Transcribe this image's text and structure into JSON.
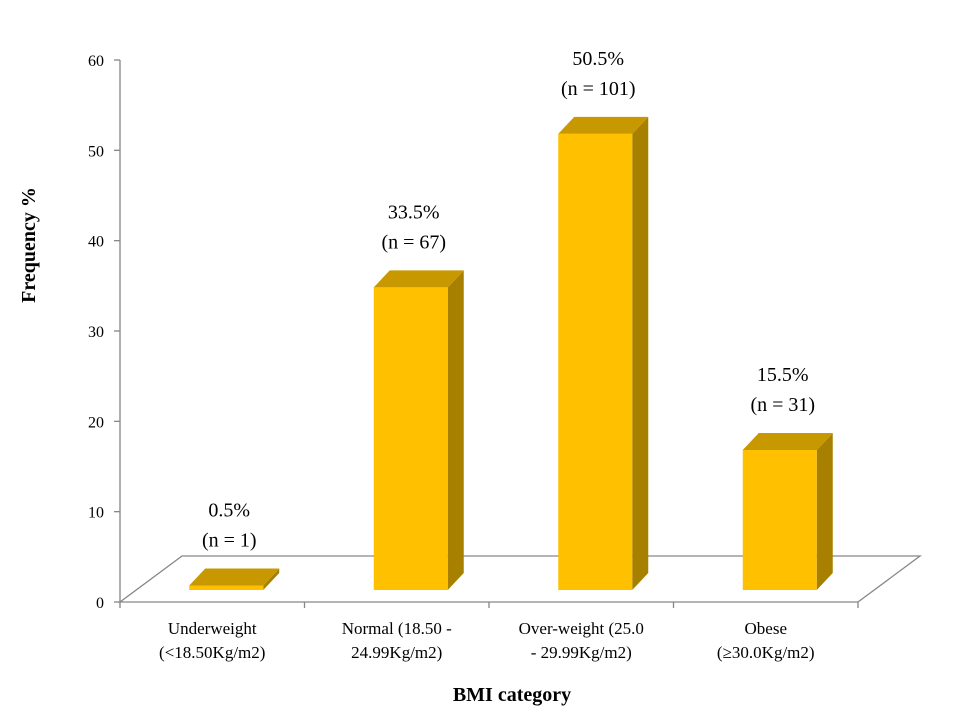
{
  "chart_data": {
    "type": "bar",
    "title": "",
    "xlabel": "BMI category",
    "ylabel": "Frequency %",
    "ylim": [
      0,
      60
    ],
    "yticks": [
      "0",
      "10",
      "20",
      "30",
      "40",
      "50",
      "60"
    ],
    "grid": false,
    "legend": "none",
    "style": "3d-column",
    "categories": [
      [
        "Underweight",
        "(<18.50Kg/m2)"
      ],
      [
        "Normal (18.50 -",
        "24.99Kg/m2)"
      ],
      [
        "Over-weight (25.0",
        "- 29.99Kg/m2)"
      ],
      [
        "Obese",
        "(≥30.0Kg/m2)"
      ]
    ],
    "values": [
      0.5,
      33.5,
      50.5,
      15.5
    ],
    "data_labels": [
      [
        "0.5%",
        "(n = 1)"
      ],
      [
        "33.5%",
        "(n = 67)"
      ],
      [
        "50.5%",
        "(n = 101)"
      ],
      [
        "15.5%",
        "(n = 31)"
      ]
    ],
    "colors": {
      "front": "#FFC000",
      "top": "#C89800",
      "side": "#A88000",
      "axis": "#868686"
    }
  }
}
